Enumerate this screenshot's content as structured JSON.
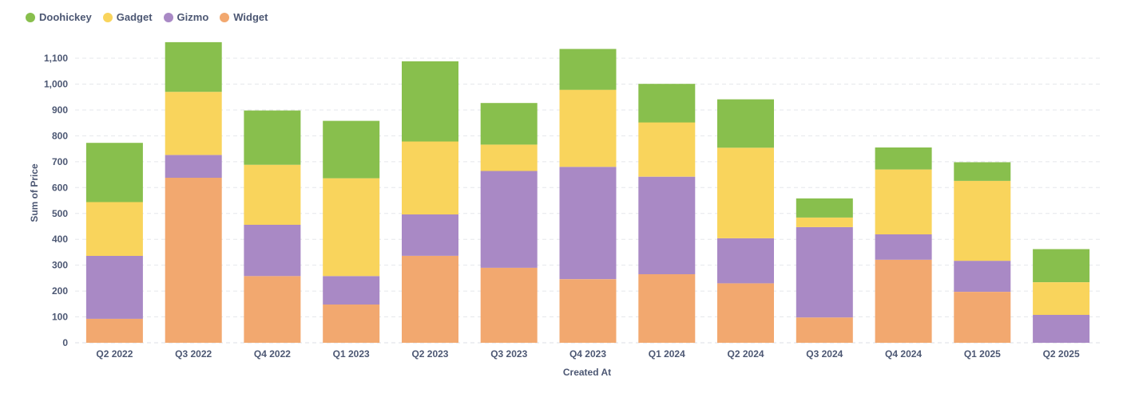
{
  "chart_data": {
    "type": "bar",
    "stacked": true,
    "categories": [
      "Q2 2022",
      "Q3 2022",
      "Q4 2022",
      "Q1 2023",
      "Q2 2023",
      "Q3 2023",
      "Q4 2023",
      "Q1 2024",
      "Q2 2024",
      "Q3 2024",
      "Q4 2024",
      "Q1 2025",
      "Q2 2025"
    ],
    "series": [
      {
        "name": "Widget",
        "color": "#f2a86f",
        "values": [
          93,
          638,
          258,
          148,
          336,
          290,
          246,
          265,
          230,
          98,
          321,
          197,
          0
        ]
      },
      {
        "name": "Gizmo",
        "color": "#a989c5",
        "values": [
          243,
          88,
          198,
          110,
          160,
          374,
          434,
          377,
          174,
          349,
          98,
          120,
          108
        ]
      },
      {
        "name": "Gadget",
        "color": "#f9d45c",
        "values": [
          208,
          244,
          232,
          378,
          282,
          102,
          298,
          210,
          350,
          37,
          251,
          309,
          126
        ]
      },
      {
        "name": "Doohickey",
        "color": "#88bf4d",
        "values": [
          229,
          192,
          210,
          222,
          310,
          161,
          158,
          149,
          187,
          74,
          85,
          72,
          128
        ]
      }
    ],
    "legend_order": [
      "Doohickey",
      "Gadget",
      "Gizmo",
      "Widget"
    ],
    "xlabel": "Created At",
    "ylabel": "Sum of Price",
    "ylim": [
      0,
      1160
    ],
    "yticks": [
      0,
      100,
      200,
      300,
      400,
      500,
      600,
      700,
      800,
      900,
      1000,
      1100
    ],
    "ytick_labels": [
      "0",
      "100",
      "200",
      "300",
      "400",
      "500",
      "600",
      "700",
      "800",
      "900",
      "1,000",
      "1,100"
    ],
    "grid": true,
    "legend_position": "top-left"
  }
}
